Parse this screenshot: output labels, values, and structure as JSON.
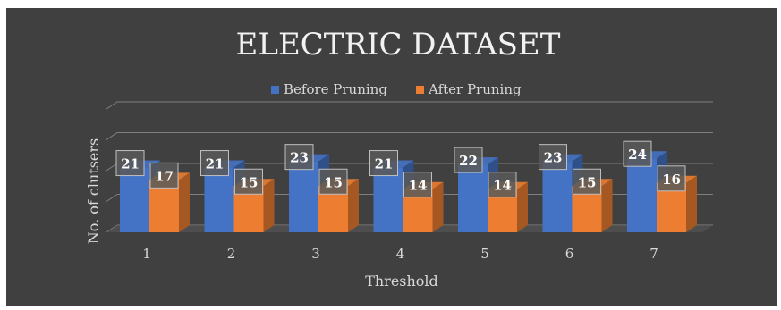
{
  "chart_data": {
    "type": "bar",
    "title": "ELECTRIC DATASET",
    "xlabel": "Threshold",
    "ylabel": "No. of clutsers",
    "categories": [
      "1",
      "2",
      "3",
      "4",
      "5",
      "6",
      "7"
    ],
    "series": [
      {
        "name": "Before Pruning",
        "values": [
          21,
          21,
          23,
          21,
          22,
          23,
          24
        ],
        "color": "#4472c4"
      },
      {
        "name": "After Pruning",
        "values": [
          17,
          15,
          15,
          14,
          14,
          15,
          16
        ],
        "color": "#ed7d31"
      }
    ],
    "ylim": [
      0,
      40
    ],
    "grid": true,
    "legend": "top",
    "background": "#404040"
  }
}
